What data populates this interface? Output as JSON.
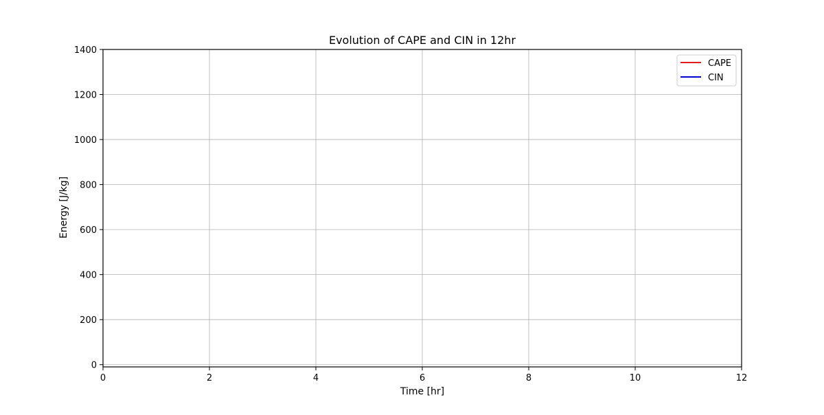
{
  "chart_data": {
    "type": "line",
    "title": "Evolution of CAPE and CIN in 12hr",
    "xlabel": "Time [hr]",
    "ylabel": "Energy [J/kg]",
    "xlim": [
      0,
      12
    ],
    "ylim": [
      -10,
      1400
    ],
    "xticks": [
      0,
      2,
      4,
      6,
      8,
      10,
      12
    ],
    "yticks": [
      0,
      200,
      400,
      600,
      800,
      1000,
      1200,
      1400
    ],
    "grid": true,
    "legend_position": "top-right",
    "series": [
      {
        "name": "CAPE",
        "color": "#e41a1c",
        "x": [],
        "y": []
      },
      {
        "name": "CIN",
        "color": "#0000cc",
        "x": [],
        "y": []
      }
    ]
  }
}
